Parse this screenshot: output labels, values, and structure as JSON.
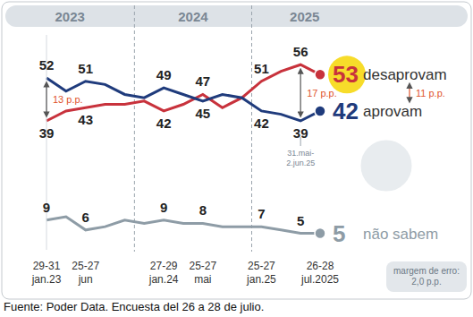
{
  "chart_data": {
    "type": "line",
    "period_labels": [
      "2023",
      "2024",
      "2025"
    ],
    "categories": [
      "29-31 jan.23",
      null,
      "25-27 jun",
      null,
      null,
      null,
      "27-29 jan.24",
      null,
      "25-27 mai",
      null,
      null,
      "25-27 jan.25",
      null,
      null,
      "26-28 jul.2025"
    ],
    "series": [
      {
        "name": "desaprovam",
        "color": "#c8323c",
        "values": [
          39,
          42,
          43,
          44,
          44,
          45,
          42,
          44,
          47,
          43,
          46,
          51,
          54,
          56,
          53
        ],
        "value_labels": [
          "39",
          null,
          "43",
          null,
          null,
          null,
          "42",
          null,
          "47",
          null,
          null,
          "51",
          null,
          "56",
          "53"
        ]
      },
      {
        "name": "aprovam",
        "color": "#1f3b7c",
        "values": [
          52,
          48,
          51,
          50,
          47,
          46,
          49,
          47,
          45,
          47,
          46,
          42,
          41,
          39,
          42
        ],
        "value_labels": [
          "52",
          null,
          "51",
          null,
          null,
          null,
          "49",
          null,
          "45",
          null,
          null,
          "42",
          null,
          "39",
          "42"
        ]
      },
      {
        "name": "não sabem",
        "color": "#8e9ca6",
        "values": [
          9,
          10,
          6,
          7,
          9,
          8,
          9,
          8,
          8,
          7,
          7,
          7,
          6,
          5,
          5
        ],
        "value_labels": [
          "9",
          null,
          "6",
          null,
          null,
          null,
          "9",
          null,
          "8",
          null,
          null,
          "7",
          null,
          "5",
          "5"
        ]
      }
    ],
    "ylim": [
      0,
      65
    ],
    "tick_labels": "x",
    "annotations": [
      {
        "text": "13 p.p.",
        "x": 0
      },
      {
        "text": "17 p.p.",
        "x": 13
      },
      {
        "text": "11 p.p.",
        "x": 14
      }
    ],
    "point_note": {
      "text": "31.mai-2.jun.25",
      "x": 13
    },
    "note": "margem de erro: 2,0 p.p.",
    "source": "Fuente: Poder Data. Encuesta del 26 a 28 de julio."
  }
}
